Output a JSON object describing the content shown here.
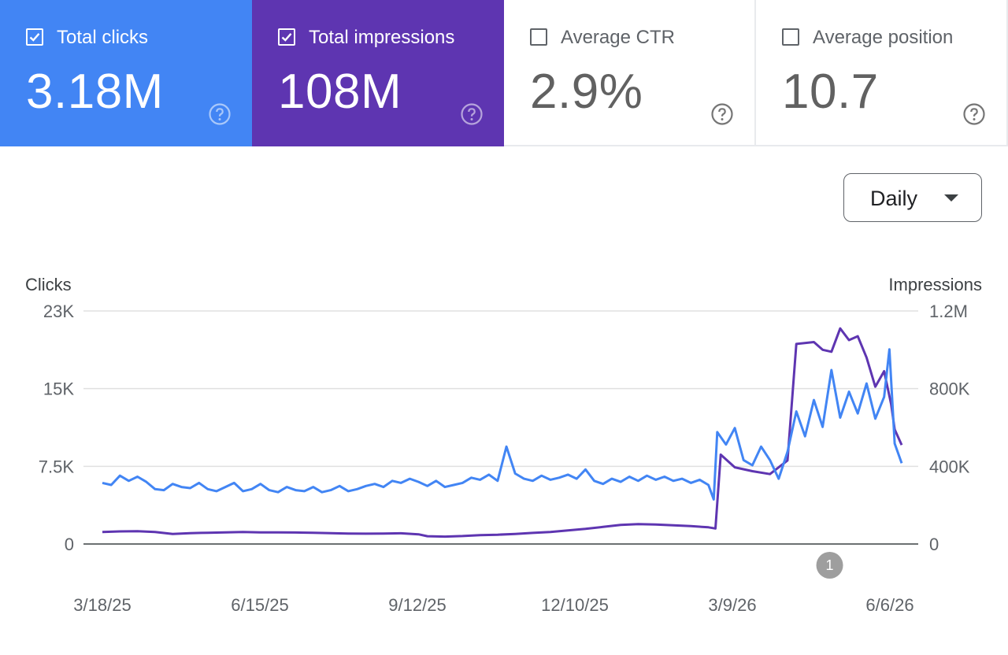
{
  "cards": [
    {
      "key": "clicks",
      "label": "Total clicks",
      "value": "3.18M",
      "checked": true,
      "color": "#4285f4"
    },
    {
      "key": "impr",
      "label": "Total impressions",
      "value": "108M",
      "checked": true,
      "color": "#5e35b1"
    },
    {
      "key": "ctr",
      "label": "Average CTR",
      "value": "2.9%",
      "checked": false
    },
    {
      "key": "pos",
      "label": "Average position",
      "value": "10.7",
      "checked": false
    }
  ],
  "dropdown": {
    "label": "Daily"
  },
  "chart_data": {
    "type": "line",
    "left_axis": {
      "title": "Clicks",
      "ticks": [
        "0",
        "7.5K",
        "15K",
        "23K"
      ],
      "range": [
        0,
        22500
      ]
    },
    "right_axis": {
      "title": "Impressions",
      "ticks": [
        "0",
        "400K",
        "800K",
        "1.2M"
      ],
      "range": [
        0,
        1200000
      ]
    },
    "x_axis": {
      "ticks": [
        "3/18/25",
        "6/15/25",
        "9/12/25",
        "12/10/25",
        "3/9/26",
        "6/6/26"
      ],
      "range": [
        "2025-03-08",
        "2026-06-06"
      ]
    },
    "grid": true,
    "annotation": {
      "label": "1",
      "date": "2026-04-26"
    },
    "series": [
      {
        "name": "Clicks",
        "axis": "left",
        "color": "#4285f4",
        "points": [
          [
            "2025-03-08",
            5900
          ],
          [
            "2025-03-13",
            5700
          ],
          [
            "2025-03-18",
            6600
          ],
          [
            "2025-03-23",
            6100
          ],
          [
            "2025-03-28",
            6500
          ],
          [
            "2025-04-02",
            6000
          ],
          [
            "2025-04-07",
            5300
          ],
          [
            "2025-04-12",
            5200
          ],
          [
            "2025-04-17",
            5800
          ],
          [
            "2025-04-22",
            5500
          ],
          [
            "2025-04-27",
            5400
          ],
          [
            "2025-05-02",
            5900
          ],
          [
            "2025-05-07",
            5300
          ],
          [
            "2025-05-12",
            5100
          ],
          [
            "2025-05-17",
            5500
          ],
          [
            "2025-05-22",
            5900
          ],
          [
            "2025-05-27",
            5100
          ],
          [
            "2025-06-01",
            5300
          ],
          [
            "2025-06-06",
            5800
          ],
          [
            "2025-06-11",
            5200
          ],
          [
            "2025-06-16",
            5000
          ],
          [
            "2025-06-21",
            5500
          ],
          [
            "2025-06-26",
            5200
          ],
          [
            "2025-07-01",
            5100
          ],
          [
            "2025-07-06",
            5500
          ],
          [
            "2025-07-11",
            5000
          ],
          [
            "2025-07-16",
            5200
          ],
          [
            "2025-07-21",
            5600
          ],
          [
            "2025-07-26",
            5100
          ],
          [
            "2025-07-31",
            5300
          ],
          [
            "2025-08-05",
            5600
          ],
          [
            "2025-08-10",
            5800
          ],
          [
            "2025-08-15",
            5500
          ],
          [
            "2025-08-20",
            6100
          ],
          [
            "2025-08-25",
            5900
          ],
          [
            "2025-08-30",
            6300
          ],
          [
            "2025-09-04",
            6000
          ],
          [
            "2025-09-09",
            5600
          ],
          [
            "2025-09-14",
            6100
          ],
          [
            "2025-09-19",
            5500
          ],
          [
            "2025-09-24",
            5700
          ],
          [
            "2025-09-29",
            5900
          ],
          [
            "2025-10-04",
            6400
          ],
          [
            "2025-10-09",
            6200
          ],
          [
            "2025-10-14",
            6700
          ],
          [
            "2025-10-19",
            6100
          ],
          [
            "2025-10-24",
            9400
          ],
          [
            "2025-10-29",
            6800
          ],
          [
            "2025-11-03",
            6300
          ],
          [
            "2025-11-08",
            6100
          ],
          [
            "2025-11-13",
            6600
          ],
          [
            "2025-11-18",
            6200
          ],
          [
            "2025-11-23",
            6400
          ],
          [
            "2025-11-28",
            6700
          ],
          [
            "2025-12-03",
            6300
          ],
          [
            "2025-12-08",
            7200
          ],
          [
            "2025-12-13",
            6100
          ],
          [
            "2025-12-18",
            5800
          ],
          [
            "2025-12-23",
            6300
          ],
          [
            "2025-12-28",
            6000
          ],
          [
            "2026-01-02",
            6500
          ],
          [
            "2026-01-07",
            6100
          ],
          [
            "2026-01-12",
            6600
          ],
          [
            "2026-01-17",
            6200
          ],
          [
            "2026-01-22",
            6500
          ],
          [
            "2026-01-27",
            6100
          ],
          [
            "2026-02-01",
            6300
          ],
          [
            "2026-02-06",
            5900
          ],
          [
            "2026-02-11",
            6200
          ],
          [
            "2026-02-16",
            5700
          ],
          [
            "2026-02-19",
            4300
          ],
          [
            "2026-02-21",
            10800
          ],
          [
            "2026-02-26",
            9600
          ],
          [
            "2026-03-03",
            11200
          ],
          [
            "2026-03-08",
            8100
          ],
          [
            "2026-03-13",
            7600
          ],
          [
            "2026-03-18",
            9400
          ],
          [
            "2026-03-23",
            8100
          ],
          [
            "2026-03-28",
            6300
          ],
          [
            "2026-04-02",
            8900
          ],
          [
            "2026-04-07",
            12800
          ],
          [
            "2026-04-12",
            10400
          ],
          [
            "2026-04-17",
            13900
          ],
          [
            "2026-04-22",
            11300
          ],
          [
            "2026-04-27",
            16800
          ],
          [
            "2026-05-02",
            12200
          ],
          [
            "2026-05-07",
            14700
          ],
          [
            "2026-05-12",
            12600
          ],
          [
            "2026-05-17",
            15500
          ],
          [
            "2026-05-22",
            12100
          ],
          [
            "2026-05-27",
            14200
          ],
          [
            "2026-05-30",
            18800
          ],
          [
            "2026-06-02",
            9700
          ],
          [
            "2026-06-06",
            7800
          ]
        ]
      },
      {
        "name": "Impressions",
        "axis": "right",
        "color": "#5e35b1",
        "points": [
          [
            "2025-03-08",
            62000
          ],
          [
            "2025-03-18",
            65000
          ],
          [
            "2025-03-28",
            66000
          ],
          [
            "2025-04-07",
            62000
          ],
          [
            "2025-04-17",
            52000
          ],
          [
            "2025-04-27",
            56000
          ],
          [
            "2025-05-07",
            58000
          ],
          [
            "2025-05-17",
            60000
          ],
          [
            "2025-05-27",
            62000
          ],
          [
            "2025-06-06",
            60000
          ],
          [
            "2025-06-16",
            60000
          ],
          [
            "2025-06-26",
            59000
          ],
          [
            "2025-07-06",
            58000
          ],
          [
            "2025-07-16",
            56000
          ],
          [
            "2025-07-26",
            54000
          ],
          [
            "2025-08-05",
            53000
          ],
          [
            "2025-08-15",
            54000
          ],
          [
            "2025-08-25",
            55000
          ],
          [
            "2025-09-04",
            50000
          ],
          [
            "2025-09-09",
            40000
          ],
          [
            "2025-09-19",
            38000
          ],
          [
            "2025-09-29",
            41000
          ],
          [
            "2025-10-09",
            46000
          ],
          [
            "2025-10-19",
            48000
          ],
          [
            "2025-10-29",
            52000
          ],
          [
            "2025-11-08",
            57000
          ],
          [
            "2025-11-18",
            62000
          ],
          [
            "2025-11-28",
            70000
          ],
          [
            "2025-12-08",
            78000
          ],
          [
            "2025-12-18",
            88000
          ],
          [
            "2025-12-28",
            98000
          ],
          [
            "2026-01-07",
            102000
          ],
          [
            "2026-01-17",
            100000
          ],
          [
            "2026-01-27",
            96000
          ],
          [
            "2026-02-06",
            92000
          ],
          [
            "2026-02-16",
            86000
          ],
          [
            "2026-02-20",
            80000
          ],
          [
            "2026-02-23",
            460000
          ],
          [
            "2026-03-03",
            395000
          ],
          [
            "2026-03-13",
            375000
          ],
          [
            "2026-03-23",
            360000
          ],
          [
            "2026-04-02",
            430000
          ],
          [
            "2026-04-07",
            1030000
          ],
          [
            "2026-04-17",
            1040000
          ],
          [
            "2026-04-22",
            1000000
          ],
          [
            "2026-04-27",
            990000
          ],
          [
            "2026-05-02",
            1110000
          ],
          [
            "2026-05-07",
            1050000
          ],
          [
            "2026-05-12",
            1070000
          ],
          [
            "2026-05-17",
            960000
          ],
          [
            "2026-05-22",
            810000
          ],
          [
            "2026-05-27",
            890000
          ],
          [
            "2026-05-31",
            720000
          ],
          [
            "2026-06-02",
            590000
          ],
          [
            "2026-06-06",
            510000
          ]
        ]
      }
    ]
  }
}
